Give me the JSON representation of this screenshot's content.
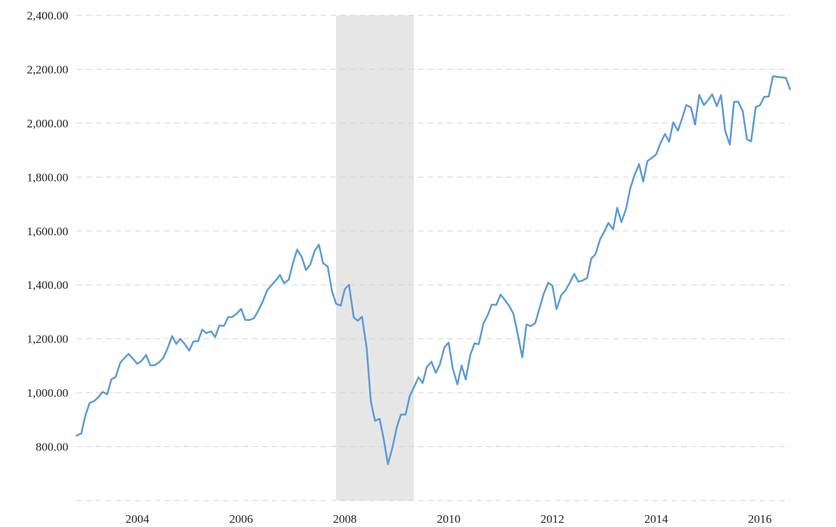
{
  "chart_data": {
    "type": "line",
    "title": "",
    "xlabel": "",
    "ylabel": "",
    "ylim": [
      600,
      2400
    ],
    "yticks": [
      2400,
      2200,
      2000,
      1800,
      1600,
      1400,
      1200,
      1000,
      800
    ],
    "ytick_labels": [
      "2,400.00",
      "2,200.00",
      "2,000.00",
      "1,800.00",
      "1,600.00",
      "1,400.00",
      "1,200.00",
      "1,000.00",
      "800.00"
    ],
    "xlim": [
      2002.83,
      2016.58
    ],
    "xticks": [
      2004,
      2006,
      2008,
      2010,
      2012,
      2014,
      2016
    ],
    "xtick_labels": [
      "2004",
      "2006",
      "2008",
      "2010",
      "2012",
      "2014",
      "2016"
    ],
    "grid": true,
    "line_color": "#5b9bd5",
    "shade_color": "#e6e6e6",
    "shaded_regions": [
      {
        "start": 2007.83,
        "end": 2009.33
      }
    ],
    "series": [
      {
        "x": [
          2002.83,
          2002.92,
          2003.0,
          2003.08,
          2003.17,
          2003.25,
          2003.33,
          2003.42,
          2003.5,
          2003.58,
          2003.67,
          2003.75,
          2003.83,
          2003.92,
          2004.0,
          2004.08,
          2004.17,
          2004.25,
          2004.33,
          2004.42,
          2004.5,
          2004.58,
          2004.67,
          2004.75,
          2004.83,
          2004.92,
          2005.0,
          2005.08,
          2005.17,
          2005.25,
          2005.33,
          2005.42,
          2005.5,
          2005.58,
          2005.67,
          2005.75,
          2005.83,
          2005.92,
          2006.0,
          2006.08,
          2006.17,
          2006.25,
          2006.33,
          2006.42,
          2006.5,
          2006.58,
          2006.67,
          2006.75,
          2006.83,
          2006.92,
          2007.0,
          2007.08,
          2007.17,
          2007.25,
          2007.33,
          2007.42,
          2007.5,
          2007.58,
          2007.67,
          2007.75,
          2007.83,
          2007.92,
          2008.0,
          2008.08,
          2008.17,
          2008.25,
          2008.33,
          2008.42,
          2008.5,
          2008.58,
          2008.67,
          2008.75,
          2008.83,
          2008.92,
          2009.0,
          2009.08,
          2009.17,
          2009.25,
          2009.33,
          2009.42,
          2009.5,
          2009.58,
          2009.67,
          2009.75,
          2009.83,
          2009.92,
          2010.0,
          2010.08,
          2010.17,
          2010.25,
          2010.33,
          2010.42,
          2010.5,
          2010.58,
          2010.67,
          2010.75,
          2010.83,
          2010.92,
          2011.0,
          2011.08,
          2011.17,
          2011.25,
          2011.33,
          2011.42,
          2011.5,
          2011.58,
          2011.67,
          2011.75,
          2011.83,
          2011.92,
          2012.0,
          2012.08,
          2012.17,
          2012.25,
          2012.33,
          2012.42,
          2012.5,
          2012.58,
          2012.67,
          2012.75,
          2012.83,
          2012.92,
          2013.0,
          2013.08,
          2013.17,
          2013.25,
          2013.33,
          2013.42,
          2013.5,
          2013.58,
          2013.67,
          2013.75,
          2013.83,
          2013.92,
          2014.0,
          2014.08,
          2014.17,
          2014.25,
          2014.33,
          2014.42,
          2014.5,
          2014.58,
          2014.67,
          2014.75,
          2014.83,
          2014.92,
          2015.0,
          2015.08,
          2015.17,
          2015.25,
          2015.33,
          2015.42,
          2015.5,
          2015.58,
          2015.67,
          2015.75,
          2015.83,
          2015.92,
          2016.0,
          2016.08,
          2016.17,
          2016.25,
          2016.33,
          2016.42,
          2016.5,
          2016.58
        ],
        "values": [
          841,
          849,
          916,
          962,
          969,
          984,
          1003,
          994,
          1050,
          1058,
          1111,
          1129,
          1144,
          1125,
          1107,
          1118,
          1140,
          1101,
          1102,
          1113,
          1129,
          1163,
          1210,
          1181,
          1200,
          1179,
          1156,
          1190,
          1191,
          1234,
          1221,
          1228,
          1206,
          1249,
          1248,
          1280,
          1281,
          1294,
          1311,
          1270,
          1270,
          1277,
          1304,
          1340,
          1379,
          1398,
          1417,
          1437,
          1406,
          1420,
          1482,
          1531,
          1503,
          1455,
          1474,
          1527,
          1549,
          1481,
          1468,
          1378,
          1330,
          1323,
          1385,
          1400,
          1280,
          1267,
          1282,
          1166,
          968,
          896,
          903,
          826,
          735,
          798,
          872,
          919,
          919,
          987,
          1020,
          1057,
          1036,
          1096,
          1115,
          1074,
          1104,
          1169,
          1186,
          1089,
          1031,
          1101,
          1049,
          1141,
          1183,
          1180,
          1257,
          1286,
          1327,
          1326,
          1364,
          1345,
          1321,
          1292,
          1219,
          1131,
          1253,
          1247,
          1258,
          1312,
          1366,
          1408,
          1397,
          1310,
          1362,
          1379,
          1406,
          1441,
          1412,
          1416,
          1426,
          1498,
          1514,
          1569,
          1598,
          1630,
          1606,
          1686,
          1633,
          1682,
          1757,
          1806,
          1848,
          1783,
          1859,
          1872,
          1884,
          1924,
          1960,
          1931,
          2003,
          1972,
          2018,
          2067,
          2058,
          1995,
          2105,
          2067,
          2085,
          2107,
          2063,
          2104,
          1972,
          1920,
          2079,
          2080,
          2044,
          1940,
          1932,
          2060,
          2066,
          2097,
          2099,
          2174,
          2172,
          2170,
          2168,
          2126
        ]
      }
    ]
  }
}
